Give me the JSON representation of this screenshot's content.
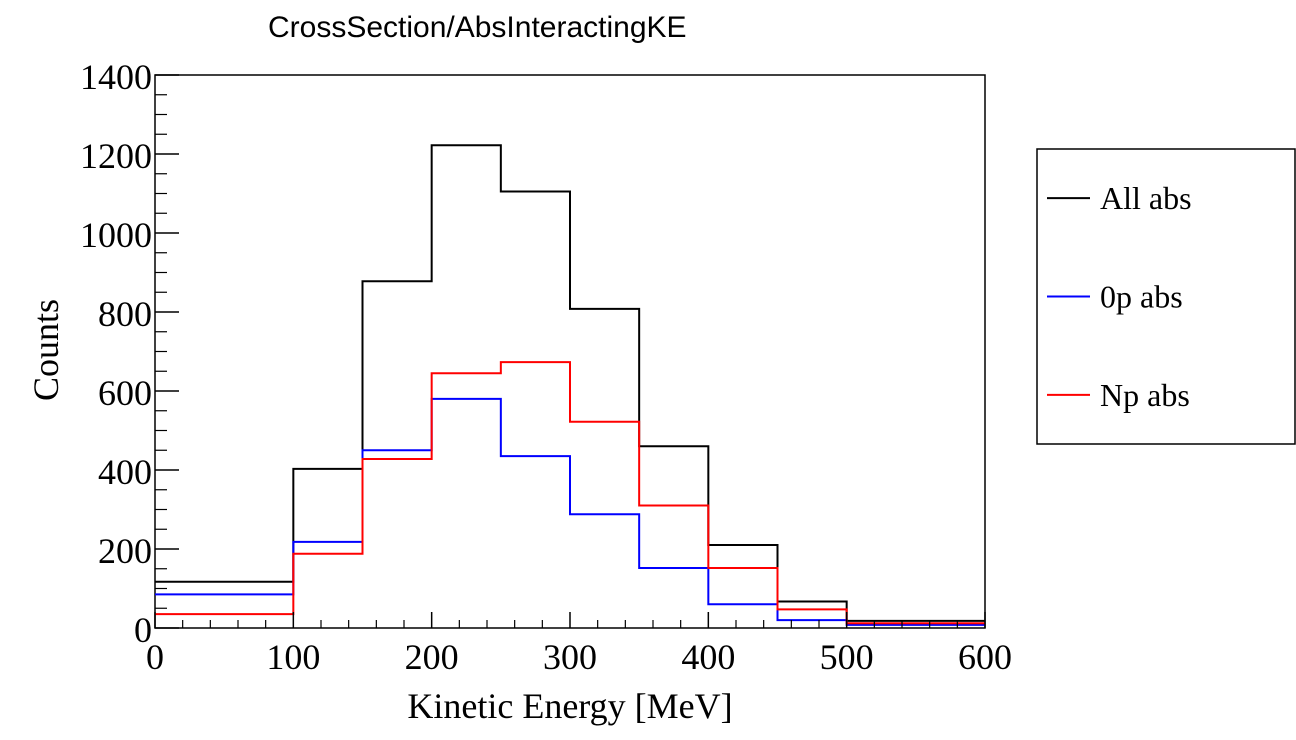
{
  "chart_data": {
    "type": "histogram",
    "title": "CrossSection/AbsInteractingKE",
    "xlabel": "Kinetic Energy [MeV]",
    "ylabel": "Counts",
    "xlim": [
      0,
      600
    ],
    "ylim": [
      0,
      1400
    ],
    "bin_edges": [
      0,
      100,
      150,
      200,
      250,
      300,
      350,
      400,
      450,
      500,
      600
    ],
    "x_ticks": [
      "0",
      "100",
      "200",
      "300",
      "400",
      "500",
      "600"
    ],
    "y_ticks": [
      "0",
      "200",
      "400",
      "600",
      "800",
      "1000",
      "1200",
      "1400"
    ],
    "grid": false,
    "legend_position": "right",
    "series": [
      {
        "name": "All abs",
        "color": "#000000",
        "values": [
          117,
          403,
          878,
          1222,
          1105,
          808,
          460,
          210,
          67,
          18
        ]
      },
      {
        "name": "0p abs",
        "color": "#0000ff",
        "values": [
          85,
          218,
          450,
          580,
          435,
          288,
          152,
          60,
          20,
          8
        ]
      },
      {
        "name": "Np abs",
        "color": "#ff0000",
        "values": [
          35,
          188,
          428,
          645,
          673,
          522,
          310,
          152,
          47,
          12
        ]
      }
    ]
  }
}
